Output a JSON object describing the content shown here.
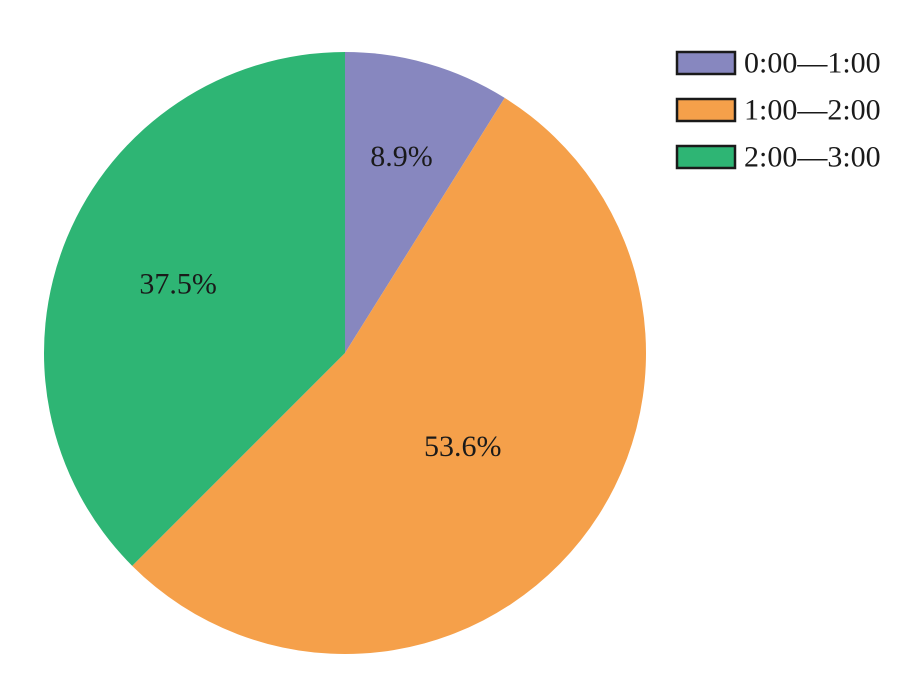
{
  "chart_data": {
    "type": "pie",
    "categories": [
      "0:00—1:00",
      "1:00—2:00",
      "2:00—3:00"
    ],
    "values": [
      8.9,
      53.6,
      37.5
    ],
    "labels": [
      "8.9%",
      "53.6%",
      "37.5%"
    ],
    "colors": [
      "#8787bf",
      "#f5a04a",
      "#2eb574"
    ],
    "start_angle": "12 o'clock",
    "direction": "clockwise",
    "legend": {
      "placement": "top-right",
      "entries": [
        "0:00—1:00",
        "1:00—2:00",
        "2:00—3:00"
      ]
    }
  }
}
